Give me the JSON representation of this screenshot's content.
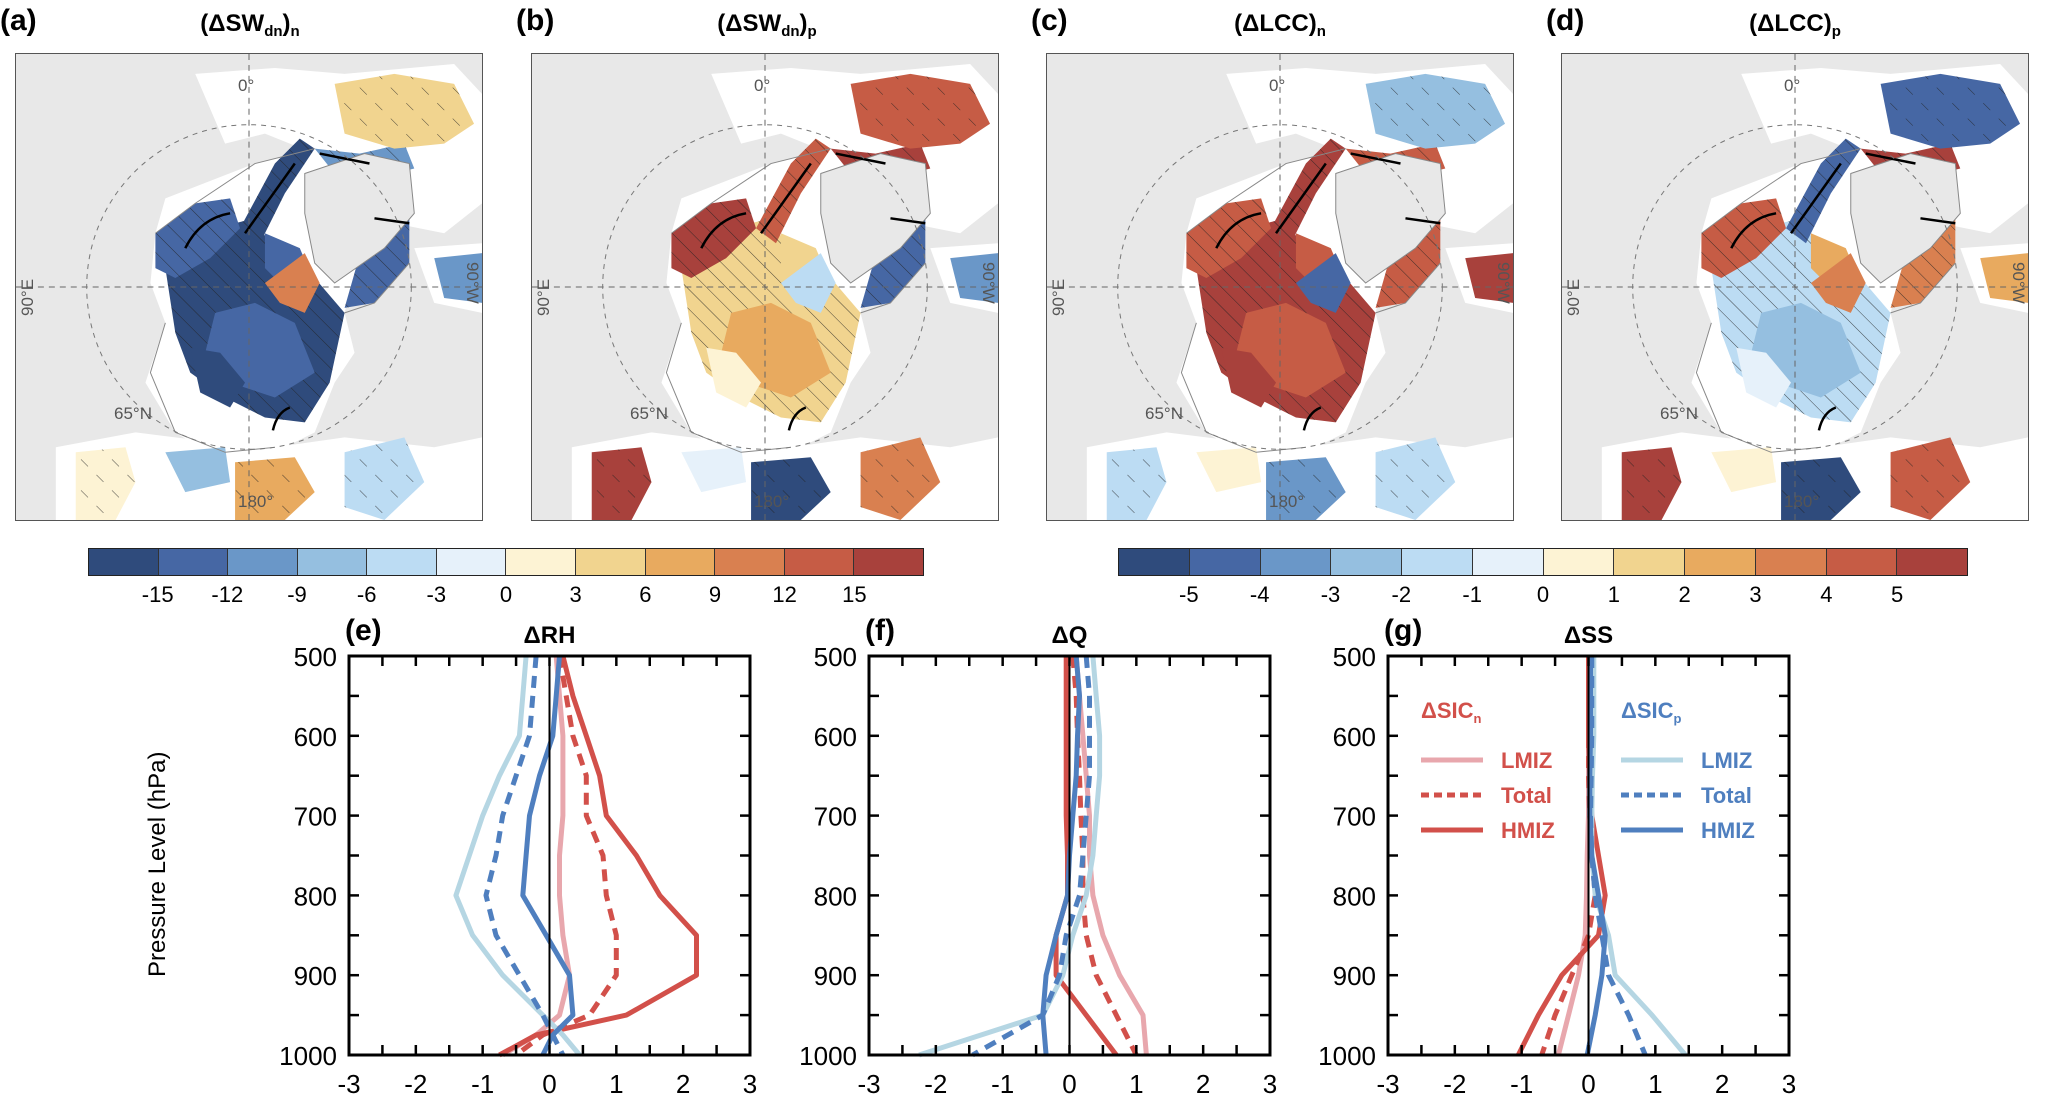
{
  "maps": [
    {
      "label": "(a)",
      "title_main": "(ΔSW",
      "title_sub1": "dn",
      "title_close": ")",
      "title_sub2": "n",
      "scale": "sw",
      "pattern": "neg_core"
    },
    {
      "label": "(b)",
      "title_main": "(ΔSW",
      "title_sub1": "dn",
      "title_close": ")",
      "title_sub2": "p",
      "scale": "sw",
      "pattern": "pos_weak"
    },
    {
      "label": "(c)",
      "title_main": "(ΔLCC",
      "title_sub1": "",
      "title_close": ")",
      "title_sub2": "n",
      "scale": "lcc",
      "pattern": "pos_core"
    },
    {
      "label": "(d)",
      "title_main": "(ΔLCC",
      "title_sub1": "",
      "title_close": ")",
      "title_sub2": "p",
      "scale": "lcc",
      "pattern": "neg_weak"
    }
  ],
  "map_labels": {
    "top": "0°",
    "bottom": "180°",
    "left": "90°E",
    "right": "90°W",
    "lat": "65°N"
  },
  "colorbars": [
    {
      "name": "sw",
      "ticks": [
        "-15",
        "-12",
        "-9",
        "-6",
        "-3",
        "0",
        "3",
        "6",
        "9",
        "12",
        "15"
      ]
    },
    {
      "name": "lcc",
      "ticks": [
        "-5",
        "-4",
        "-3",
        "-2",
        "-1",
        "0",
        "1",
        "2",
        "3",
        "4",
        "5"
      ]
    }
  ],
  "palette": [
    "#2f4b7c",
    "#4667a4",
    "#6a97c8",
    "#95bfe0",
    "#bcdcf3",
    "#e6f1fa",
    "#fdf3d4",
    "#f1d48f",
    "#e8aa5f",
    "#d98050",
    "#c65c45",
    "#a8413c"
  ],
  "land_color": "#e8e8e8",
  "chart_data": [
    {
      "panel": "(e)",
      "title": "ΔRH",
      "type": "line",
      "xlabel": "",
      "ylabel": "Pressure Level (hPa)",
      "xlim": [
        -3,
        3
      ],
      "ylim": [
        1000,
        500
      ],
      "xticks": [
        "-3",
        "-2",
        "-1",
        "0",
        "1",
        "2",
        "3"
      ],
      "yticks": [
        "500",
        "600",
        "700",
        "800",
        "900",
        "1000"
      ],
      "levels": [
        500,
        550,
        600,
        650,
        700,
        750,
        800,
        850,
        900,
        950,
        975,
        1000
      ],
      "series": [
        {
          "name": "ΔSICn LMIZ",
          "color": "#e8a7ad",
          "dash": false,
          "values": [
            0.1,
            0.15,
            0.2,
            0.2,
            0.2,
            0.15,
            0.15,
            0.2,
            0.3,
            0.15,
            -0.2,
            -0.7
          ]
        },
        {
          "name": "ΔSICn Total",
          "color": "#d2504a",
          "dash": true,
          "values": [
            0.15,
            0.25,
            0.35,
            0.55,
            0.55,
            0.8,
            0.85,
            1.0,
            1.0,
            0.6,
            -0.1,
            -0.5
          ]
        },
        {
          "name": "ΔSICn HMIZ",
          "color": "#d2504a",
          "dash": false,
          "values": [
            0.2,
            0.35,
            0.55,
            0.75,
            0.85,
            1.3,
            1.65,
            2.2,
            2.2,
            1.15,
            -0.2,
            -0.75
          ]
        },
        {
          "name": "ΔSICp LMIZ",
          "color": "#b5d6e3",
          "dash": false,
          "values": [
            -0.35,
            -0.4,
            -0.45,
            -0.75,
            -1.0,
            -1.2,
            -1.4,
            -1.15,
            -0.7,
            -0.1,
            0.2,
            0.45
          ]
        },
        {
          "name": "ΔSICp Total",
          "color": "#4f7fbf",
          "dash": true,
          "values": [
            -0.2,
            -0.25,
            -0.3,
            -0.5,
            -0.7,
            -0.8,
            -0.95,
            -0.8,
            -0.45,
            -0.1,
            0.05,
            0.2
          ]
        },
        {
          "name": "ΔSICp HMIZ",
          "color": "#4f7fbf",
          "dash": false,
          "values": [
            0.15,
            0.1,
            0.05,
            -0.15,
            -0.3,
            -0.35,
            -0.4,
            -0.05,
            0.3,
            0.35,
            0.05,
            -0.1
          ]
        }
      ]
    },
    {
      "panel": "(f)",
      "title": "ΔQ",
      "type": "line",
      "xlim": [
        -3,
        3
      ],
      "ylim": [
        1000,
        500
      ],
      "xticks": [
        "-3",
        "-2",
        "-1",
        "0",
        "1",
        "2",
        "3"
      ],
      "yticks": [
        "500",
        "600",
        "700",
        "800",
        "900",
        "1000"
      ],
      "levels": [
        500,
        550,
        600,
        650,
        700,
        750,
        800,
        850,
        900,
        950,
        1000
      ],
      "series": [
        {
          "name": "ΔSICn LMIZ",
          "color": "#e8a7ad",
          "dash": false,
          "values": [
            0.1,
            0.15,
            0.2,
            0.25,
            0.3,
            0.3,
            0.35,
            0.5,
            0.75,
            1.1,
            1.15
          ]
        },
        {
          "name": "ΔSICn Total",
          "color": "#d2504a",
          "dash": true,
          "values": [
            0.05,
            0.1,
            0.12,
            0.15,
            0.17,
            0.2,
            0.2,
            0.25,
            0.4,
            0.7,
            1.0
          ]
        },
        {
          "name": "ΔSICn HMIZ",
          "color": "#d2504a",
          "dash": false,
          "values": [
            -0.05,
            -0.05,
            -0.05,
            -0.05,
            -0.05,
            -0.03,
            -0.03,
            -0.2,
            -0.2,
            0.25,
            0.7
          ]
        },
        {
          "name": "ΔSICp LMIZ",
          "color": "#b5d6e3",
          "dash": false,
          "values": [
            0.35,
            0.4,
            0.45,
            0.45,
            0.4,
            0.35,
            0.25,
            0.05,
            -0.1,
            -0.4,
            -2.25
          ]
        },
        {
          "name": "ΔSICp Total",
          "color": "#4f7fbf",
          "dash": true,
          "values": [
            0.25,
            0.3,
            0.3,
            0.3,
            0.25,
            0.2,
            0.15,
            -0.05,
            -0.15,
            -0.4,
            -1.45
          ]
        },
        {
          "name": "ΔSICp HMIZ",
          "color": "#4f7fbf",
          "dash": false,
          "values": [
            0.1,
            0.15,
            0.12,
            0.1,
            0.05,
            0.0,
            -0.03,
            -0.2,
            -0.35,
            -0.4,
            -0.35
          ]
        }
      ]
    },
    {
      "panel": "(g)",
      "title": "ΔSS",
      "type": "line",
      "xlim": [
        -3,
        3
      ],
      "ylim": [
        1000,
        500
      ],
      "xticks": [
        "-3",
        "-2",
        "-1",
        "0",
        "1",
        "2",
        "3"
      ],
      "yticks": [
        "500",
        "600",
        "700",
        "800",
        "900",
        "1000"
      ],
      "levels": [
        500,
        550,
        600,
        650,
        700,
        750,
        800,
        850,
        900,
        950,
        1000
      ],
      "series": [
        {
          "name": "ΔSICn LMIZ",
          "color": "#e8a7ad",
          "dash": false,
          "values": [
            0.0,
            0.0,
            0.0,
            0.0,
            0.0,
            -0.02,
            -0.03,
            -0.05,
            -0.15,
            -0.3,
            -0.45
          ]
        },
        {
          "name": "ΔSICn Total",
          "color": "#d2504a",
          "dash": true,
          "values": [
            0.0,
            0.0,
            0.0,
            0.0,
            0.02,
            0.05,
            0.1,
            0.0,
            -0.25,
            -0.5,
            -0.7
          ]
        },
        {
          "name": "ΔSICn HMIZ",
          "color": "#d2504a",
          "dash": false,
          "values": [
            0.0,
            0.0,
            0.0,
            0.02,
            0.05,
            0.15,
            0.25,
            0.15,
            -0.4,
            -0.75,
            -1.05
          ]
        },
        {
          "name": "ΔSICp LMIZ",
          "color": "#b5d6e3",
          "dash": false,
          "values": [
            0.08,
            0.08,
            0.08,
            0.06,
            0.05,
            0.05,
            0.1,
            0.3,
            0.4,
            0.95,
            1.45
          ]
        },
        {
          "name": "ΔSICp Total",
          "color": "#4f7fbf",
          "dash": true,
          "values": [
            0.05,
            0.05,
            0.05,
            0.04,
            0.03,
            0.05,
            0.1,
            0.2,
            0.3,
            0.6,
            0.85
          ]
        },
        {
          "name": "ΔSICp HMIZ",
          "color": "#4f7fbf",
          "dash": false,
          "values": [
            0.03,
            0.03,
            0.03,
            0.02,
            0.02,
            0.05,
            0.15,
            0.25,
            0.2,
            0.1,
            -0.02
          ]
        }
      ]
    }
  ],
  "legend": {
    "groups": [
      {
        "head": "ΔSIC",
        "sub": "n",
        "color": "#d2504a",
        "items": [
          {
            "label": "LMIZ",
            "color": "#e8a7ad",
            "dash": false
          },
          {
            "label": "Total",
            "color": "#d2504a",
            "dash": true
          },
          {
            "label": "HMIZ",
            "color": "#d2504a",
            "dash": false
          }
        ]
      },
      {
        "head": "ΔSIC",
        "sub": "p",
        "color": "#4f7fbf",
        "items": [
          {
            "label": "LMIZ",
            "color": "#b5d6e3",
            "dash": false
          },
          {
            "label": "Total",
            "color": "#4f7fbf",
            "dash": true
          },
          {
            "label": "HMIZ",
            "color": "#4f7fbf",
            "dash": false
          }
        ]
      }
    ]
  }
}
